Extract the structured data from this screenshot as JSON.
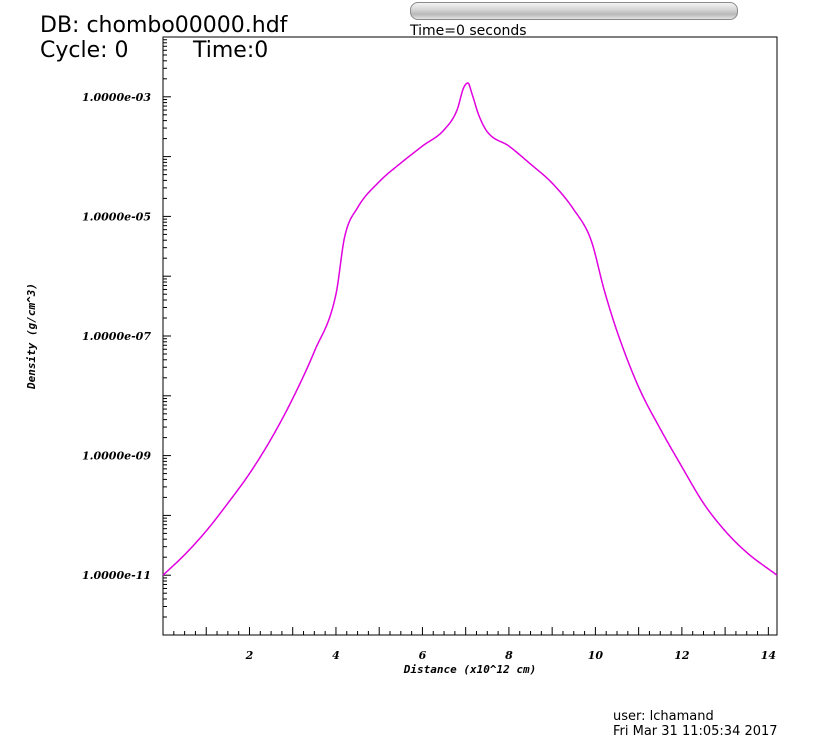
{
  "header": {
    "db_title": "DB: chombo00000.hdf",
    "cycle": "Cycle: 0",
    "time": "Time:0"
  },
  "slider": {
    "caption": "Time=0 seconds"
  },
  "footer": {
    "user": "user: lchamand",
    "date": "Fri Mar 31 11:05:34 2017"
  },
  "colors": {
    "curve": "#e000e0",
    "axis": "#000000",
    "background": "#ffffff"
  },
  "chart_data": {
    "type": "line",
    "title": "",
    "xlabel": "Distance (x10^12 cm)",
    "ylabel": "Density (g/cm^3)",
    "xlim": [
      0,
      14.2
    ],
    "ylim": [
      1e-12,
      0.01
    ],
    "yscale": "log",
    "grid": false,
    "legend": "none",
    "x_ticks": [
      2,
      4,
      6,
      8,
      10,
      12,
      14
    ],
    "x_tick_labels": [
      "2",
      "4",
      "6",
      "8",
      "10",
      "12",
      "14"
    ],
    "y_ticks": [
      1e-11,
      1e-09,
      1e-07,
      1e-05,
      0.001
    ],
    "y_tick_labels": [
      "1.0000e-11",
      "1.0000e-09",
      "1.0000e-07",
      "1.0000e-05",
      "1.0000e-03"
    ],
    "series": [
      {
        "x": [
          0,
          0.5,
          1,
          1.5,
          2,
          2.5,
          3,
          3.5,
          4,
          4.2,
          4.5,
          5,
          5.5,
          6,
          6.5,
          6.8,
          6.95,
          7.05,
          7.15,
          7.3,
          7.5,
          8,
          8.5,
          9,
          9.5,
          9.9,
          10.2,
          10.5,
          11,
          11.5,
          12,
          12.5,
          13,
          13.5,
          14.2
        ],
        "y": [
          1e-11,
          2.2e-11,
          5.5e-11,
          1.6e-10,
          5e-10,
          1.9e-09,
          9e-09,
          5.5e-08,
          5e-07,
          4.5e-06,
          1.4e-05,
          3.8e-05,
          7.8e-05,
          0.00015,
          0.00028,
          0.0006,
          0.0014,
          0.0017,
          0.0011,
          0.0005,
          0.00026,
          0.00015,
          7.5e-05,
          3.6e-05,
          1.3e-05,
          4e-06,
          6e-07,
          1.2e-07,
          1.4e-08,
          2.8e-09,
          6.5e-10,
          1.6e-10,
          5.5e-11,
          2.4e-11,
          1e-11
        ]
      }
    ]
  }
}
